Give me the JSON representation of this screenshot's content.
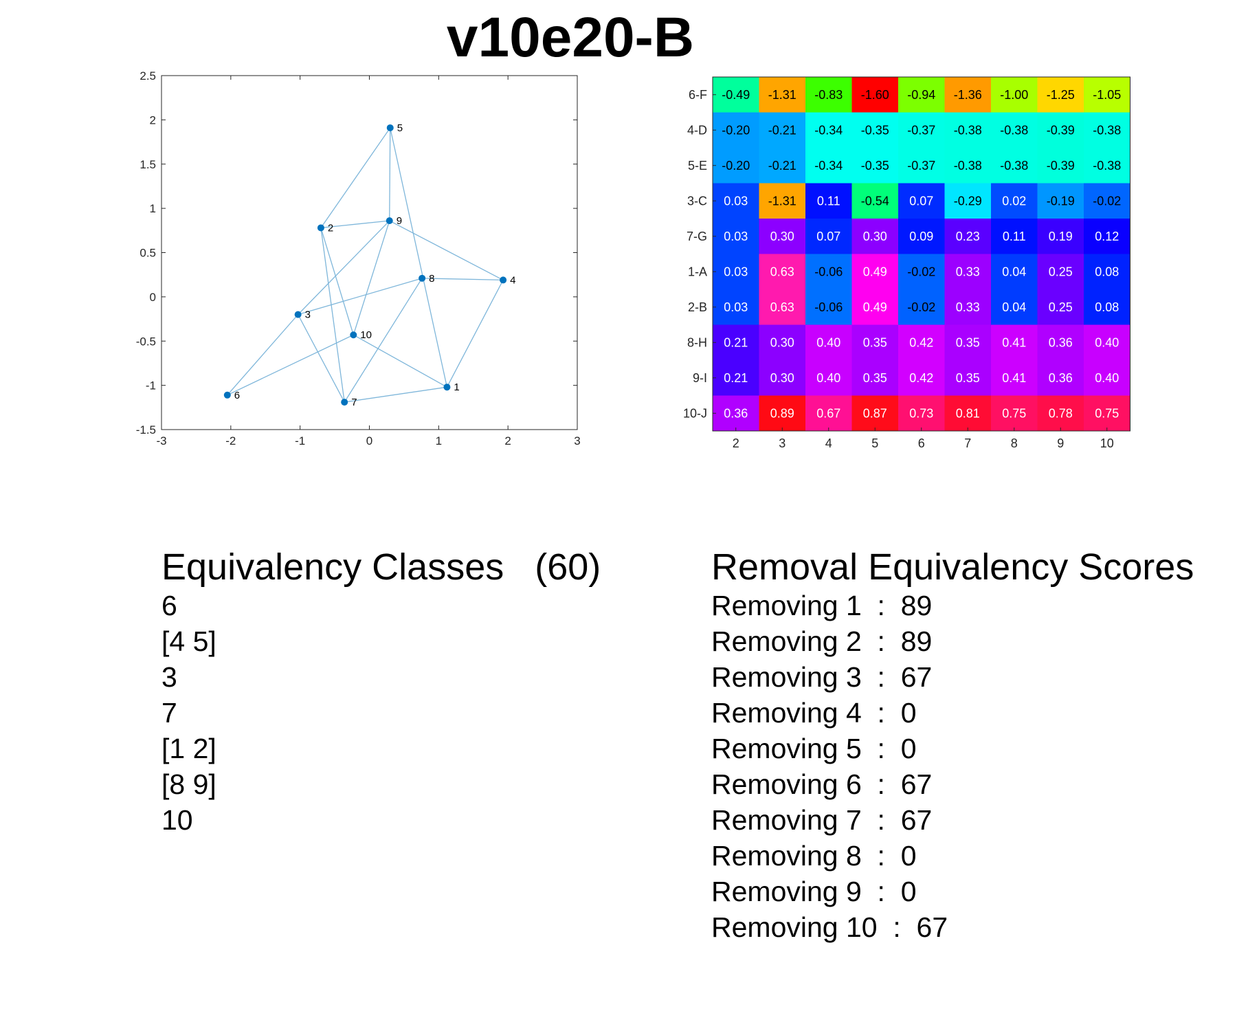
{
  "title": "v10e20-B",
  "chart_data": [
    {
      "type": "scatter",
      "subtype": "network-graph",
      "xlim": [
        -3,
        3
      ],
      "ylim": [
        -1.5,
        2.5
      ],
      "xticks": [
        -3,
        -2,
        -1,
        0,
        1,
        2,
        3
      ],
      "yticks": [
        -1.5,
        -1,
        -0.5,
        0,
        0.5,
        1,
        1.5,
        2,
        2.5
      ],
      "grid": false,
      "node_color": "#0072BD",
      "edge_color": "#7EB6DA",
      "nodes": [
        {
          "id": 1,
          "label": "1",
          "x": 1.12,
          "y": -1.02
        },
        {
          "id": 2,
          "label": "2",
          "x": -0.7,
          "y": 0.78
        },
        {
          "id": 3,
          "label": "3",
          "x": -1.03,
          "y": -0.2
        },
        {
          "id": 4,
          "label": "4",
          "x": 1.93,
          "y": 0.19
        },
        {
          "id": 5,
          "label": "5",
          "x": 0.3,
          "y": 1.91
        },
        {
          "id": 6,
          "label": "6",
          "x": -2.05,
          "y": -1.11
        },
        {
          "id": 7,
          "label": "7",
          "x": -0.36,
          "y": -1.19
        },
        {
          "id": 8,
          "label": "8",
          "x": 0.76,
          "y": 0.21
        },
        {
          "id": 9,
          "label": "9",
          "x": 0.29,
          "y": 0.86
        },
        {
          "id": 10,
          "label": "10",
          "x": -0.23,
          "y": -0.43
        }
      ],
      "edges": [
        [
          5,
          2
        ],
        [
          5,
          9
        ],
        [
          5,
          1
        ],
        [
          2,
          9
        ],
        [
          2,
          7
        ],
        [
          2,
          10
        ],
        [
          9,
          3
        ],
        [
          9,
          10
        ],
        [
          9,
          4
        ],
        [
          8,
          4
        ],
        [
          8,
          7
        ],
        [
          8,
          3
        ],
        [
          3,
          6
        ],
        [
          3,
          7
        ],
        [
          4,
          1
        ],
        [
          10,
          1
        ],
        [
          10,
          6
        ],
        [
          7,
          1
        ]
      ]
    },
    {
      "type": "heatmap",
      "row_labels": [
        "6-F",
        "4-D",
        "5-E",
        "3-C",
        "7-G",
        "1-A",
        "2-B",
        "8-H",
        "9-I",
        "10-J"
      ],
      "col_labels": [
        "2",
        "3",
        "4",
        "5",
        "6",
        "7",
        "8",
        "9",
        "10"
      ],
      "cells": [
        [
          {
            "v": "-0.49",
            "c": "#00FF9C"
          },
          {
            "v": "-1.31",
            "c": "#FFA500"
          },
          {
            "v": "-0.83",
            "c": "#3CFF00"
          },
          {
            "v": "-1.60",
            "c": "#FF0000"
          },
          {
            "v": "-0.94",
            "c": "#7CFF00"
          },
          {
            "v": "-1.36",
            "c": "#FF9A00"
          },
          {
            "v": "-1.00",
            "c": "#A8FF00"
          },
          {
            "v": "-1.25",
            "c": "#FFD700"
          },
          {
            "v": "-1.05",
            "c": "#B8FF00"
          }
        ],
        [
          {
            "v": "-0.20",
            "c": "#009CFF"
          },
          {
            "v": "-0.21",
            "c": "#00A8FF"
          },
          {
            "v": "-0.34",
            "c": "#00FFF0"
          },
          {
            "v": "-0.35",
            "c": "#00FFF0"
          },
          {
            "v": "-0.37",
            "c": "#00FFE6"
          },
          {
            "v": "-0.38",
            "c": "#00FFE2"
          },
          {
            "v": "-0.38",
            "c": "#00FFE2"
          },
          {
            "v": "-0.39",
            "c": "#00FFDC"
          },
          {
            "v": "-0.38",
            "c": "#00FFE2"
          }
        ],
        [
          {
            "v": "-0.20",
            "c": "#009CFF"
          },
          {
            "v": "-0.21",
            "c": "#00A8FF"
          },
          {
            "v": "-0.34",
            "c": "#00FFF0"
          },
          {
            "v": "-0.35",
            "c": "#00FFF0"
          },
          {
            "v": "-0.37",
            "c": "#00FFE6"
          },
          {
            "v": "-0.38",
            "c": "#00FFE2"
          },
          {
            "v": "-0.38",
            "c": "#00FFE2"
          },
          {
            "v": "-0.39",
            "c": "#00FFDC"
          },
          {
            "v": "-0.38",
            "c": "#00FFE2"
          }
        ],
        [
          {
            "v": "0.03",
            "c": "#0044FF"
          },
          {
            "v": "-1.31",
            "c": "#FFA500"
          },
          {
            "v": "0.11",
            "c": "#0010FF"
          },
          {
            "v": "-0.54",
            "c": "#00FF7A"
          },
          {
            "v": "0.07",
            "c": "#002CFF"
          },
          {
            "v": "-0.29",
            "c": "#00E6FF"
          },
          {
            "v": "0.02",
            "c": "#004CFF"
          },
          {
            "v": "-0.19",
            "c": "#0096FF"
          },
          {
            "v": "-0.02",
            "c": "#0066FF"
          }
        ],
        [
          {
            "v": "0.03",
            "c": "#0044FF"
          },
          {
            "v": "0.30",
            "c": "#8C00FF"
          },
          {
            "v": "0.07",
            "c": "#0028FF"
          },
          {
            "v": "0.30",
            "c": "#8C00FF"
          },
          {
            "v": "0.09",
            "c": "#0018FF"
          },
          {
            "v": "0.23",
            "c": "#5A00FF"
          },
          {
            "v": "0.11",
            "c": "#0010FF"
          },
          {
            "v": "0.19",
            "c": "#3A00FF"
          },
          {
            "v": "0.12",
            "c": "#0A00FF"
          }
        ],
        [
          {
            "v": "0.03",
            "c": "#0044FF"
          },
          {
            "v": "0.63",
            "c": "#FF1AAE"
          },
          {
            "v": "-0.06",
            "c": "#0070FF"
          },
          {
            "v": "0.49",
            "c": "#FF00F0"
          },
          {
            "v": "-0.02",
            "c": "#0062FF"
          },
          {
            "v": "0.33",
            "c": "#9C00FF"
          },
          {
            "v": "0.04",
            "c": "#003CFF"
          },
          {
            "v": "0.25",
            "c": "#6A00FF"
          },
          {
            "v": "0.08",
            "c": "#0022FF"
          }
        ],
        [
          {
            "v": "0.03",
            "c": "#0044FF"
          },
          {
            "v": "0.63",
            "c": "#FF1AAE"
          },
          {
            "v": "-0.06",
            "c": "#0070FF"
          },
          {
            "v": "0.49",
            "c": "#FF00F0"
          },
          {
            "v": "-0.02",
            "c": "#0062FF"
          },
          {
            "v": "0.33",
            "c": "#9C00FF"
          },
          {
            "v": "0.04",
            "c": "#003CFF"
          },
          {
            "v": "0.25",
            "c": "#6A00FF"
          },
          {
            "v": "0.08",
            "c": "#0022FF"
          }
        ],
        [
          {
            "v": "0.21",
            "c": "#4A00FF"
          },
          {
            "v": "0.30",
            "c": "#8C00FF"
          },
          {
            "v": "0.40",
            "c": "#C800FF"
          },
          {
            "v": "0.35",
            "c": "#AA00FF"
          },
          {
            "v": "0.42",
            "c": "#D200FF"
          },
          {
            "v": "0.35",
            "c": "#AA00FF"
          },
          {
            "v": "0.41",
            "c": "#CC00FF"
          },
          {
            "v": "0.36",
            "c": "#B000FF"
          },
          {
            "v": "0.40",
            "c": "#C800FF"
          }
        ],
        [
          {
            "v": "0.21",
            "c": "#4A00FF"
          },
          {
            "v": "0.30",
            "c": "#8C00FF"
          },
          {
            "v": "0.40",
            "c": "#C800FF"
          },
          {
            "v": "0.35",
            "c": "#AA00FF"
          },
          {
            "v": "0.42",
            "c": "#D200FF"
          },
          {
            "v": "0.35",
            "c": "#AA00FF"
          },
          {
            "v": "0.41",
            "c": "#CC00FF"
          },
          {
            "v": "0.36",
            "c": "#B000FF"
          },
          {
            "v": "0.40",
            "c": "#C800FF"
          }
        ],
        [
          {
            "v": "0.36",
            "c": "#B000FF"
          },
          {
            "v": "0.89",
            "c": "#FF0A14"
          },
          {
            "v": "0.67",
            "c": "#FF1094"
          },
          {
            "v": "0.87",
            "c": "#FF0C1A"
          },
          {
            "v": "0.73",
            "c": "#FF1070"
          },
          {
            "v": "0.81",
            "c": "#FF0C34"
          },
          {
            "v": "0.75",
            "c": "#FF1062"
          },
          {
            "v": "0.78",
            "c": "#FF0E4A"
          },
          {
            "v": "0.75",
            "c": "#FF1062"
          }
        ]
      ],
      "text_colors": {
        "dark": "#000000",
        "light": "#ffffff"
      },
      "dark_text_cells": [
        [
          0,
          0
        ],
        [
          0,
          1
        ],
        [
          0,
          2
        ],
        [
          0,
          3
        ],
        [
          0,
          4
        ],
        [
          0,
          5
        ],
        [
          0,
          6
        ],
        [
          0,
          7
        ],
        [
          0,
          8
        ],
        [
          1,
          0
        ],
        [
          1,
          1
        ],
        [
          1,
          2
        ],
        [
          1,
          3
        ],
        [
          1,
          4
        ],
        [
          1,
          5
        ],
        [
          1,
          6
        ],
        [
          1,
          7
        ],
        [
          1,
          8
        ],
        [
          2,
          0
        ],
        [
          2,
          1
        ],
        [
          2,
          2
        ],
        [
          2,
          3
        ],
        [
          2,
          4
        ],
        [
          2,
          5
        ],
        [
          2,
          6
        ],
        [
          2,
          7
        ],
        [
          2,
          8
        ],
        [
          3,
          1
        ],
        [
          3,
          3
        ],
        [
          3,
          5
        ],
        [
          3,
          7
        ],
        [
          3,
          8
        ],
        [
          5,
          2
        ],
        [
          5,
          4
        ],
        [
          6,
          2
        ],
        [
          6,
          4
        ]
      ]
    }
  ],
  "equivalency": {
    "heading": "Equivalency Classes   (60)",
    "lines": [
      "6",
      "[4 5]",
      "3",
      "7",
      "[1 2]",
      "[8 9]",
      "10"
    ]
  },
  "removal": {
    "heading": "Removal Equivalency Scores",
    "lines": [
      "Removing 1  :  89",
      "Removing 2  :  89",
      "Removing 3  :  67",
      "Removing 4  :  0",
      "Removing 5  :  0",
      "Removing 6  :  67",
      "Removing 7  :  67",
      "Removing 8  :  0",
      "Removing 9  :  0",
      "Removing 10  :  67"
    ]
  }
}
